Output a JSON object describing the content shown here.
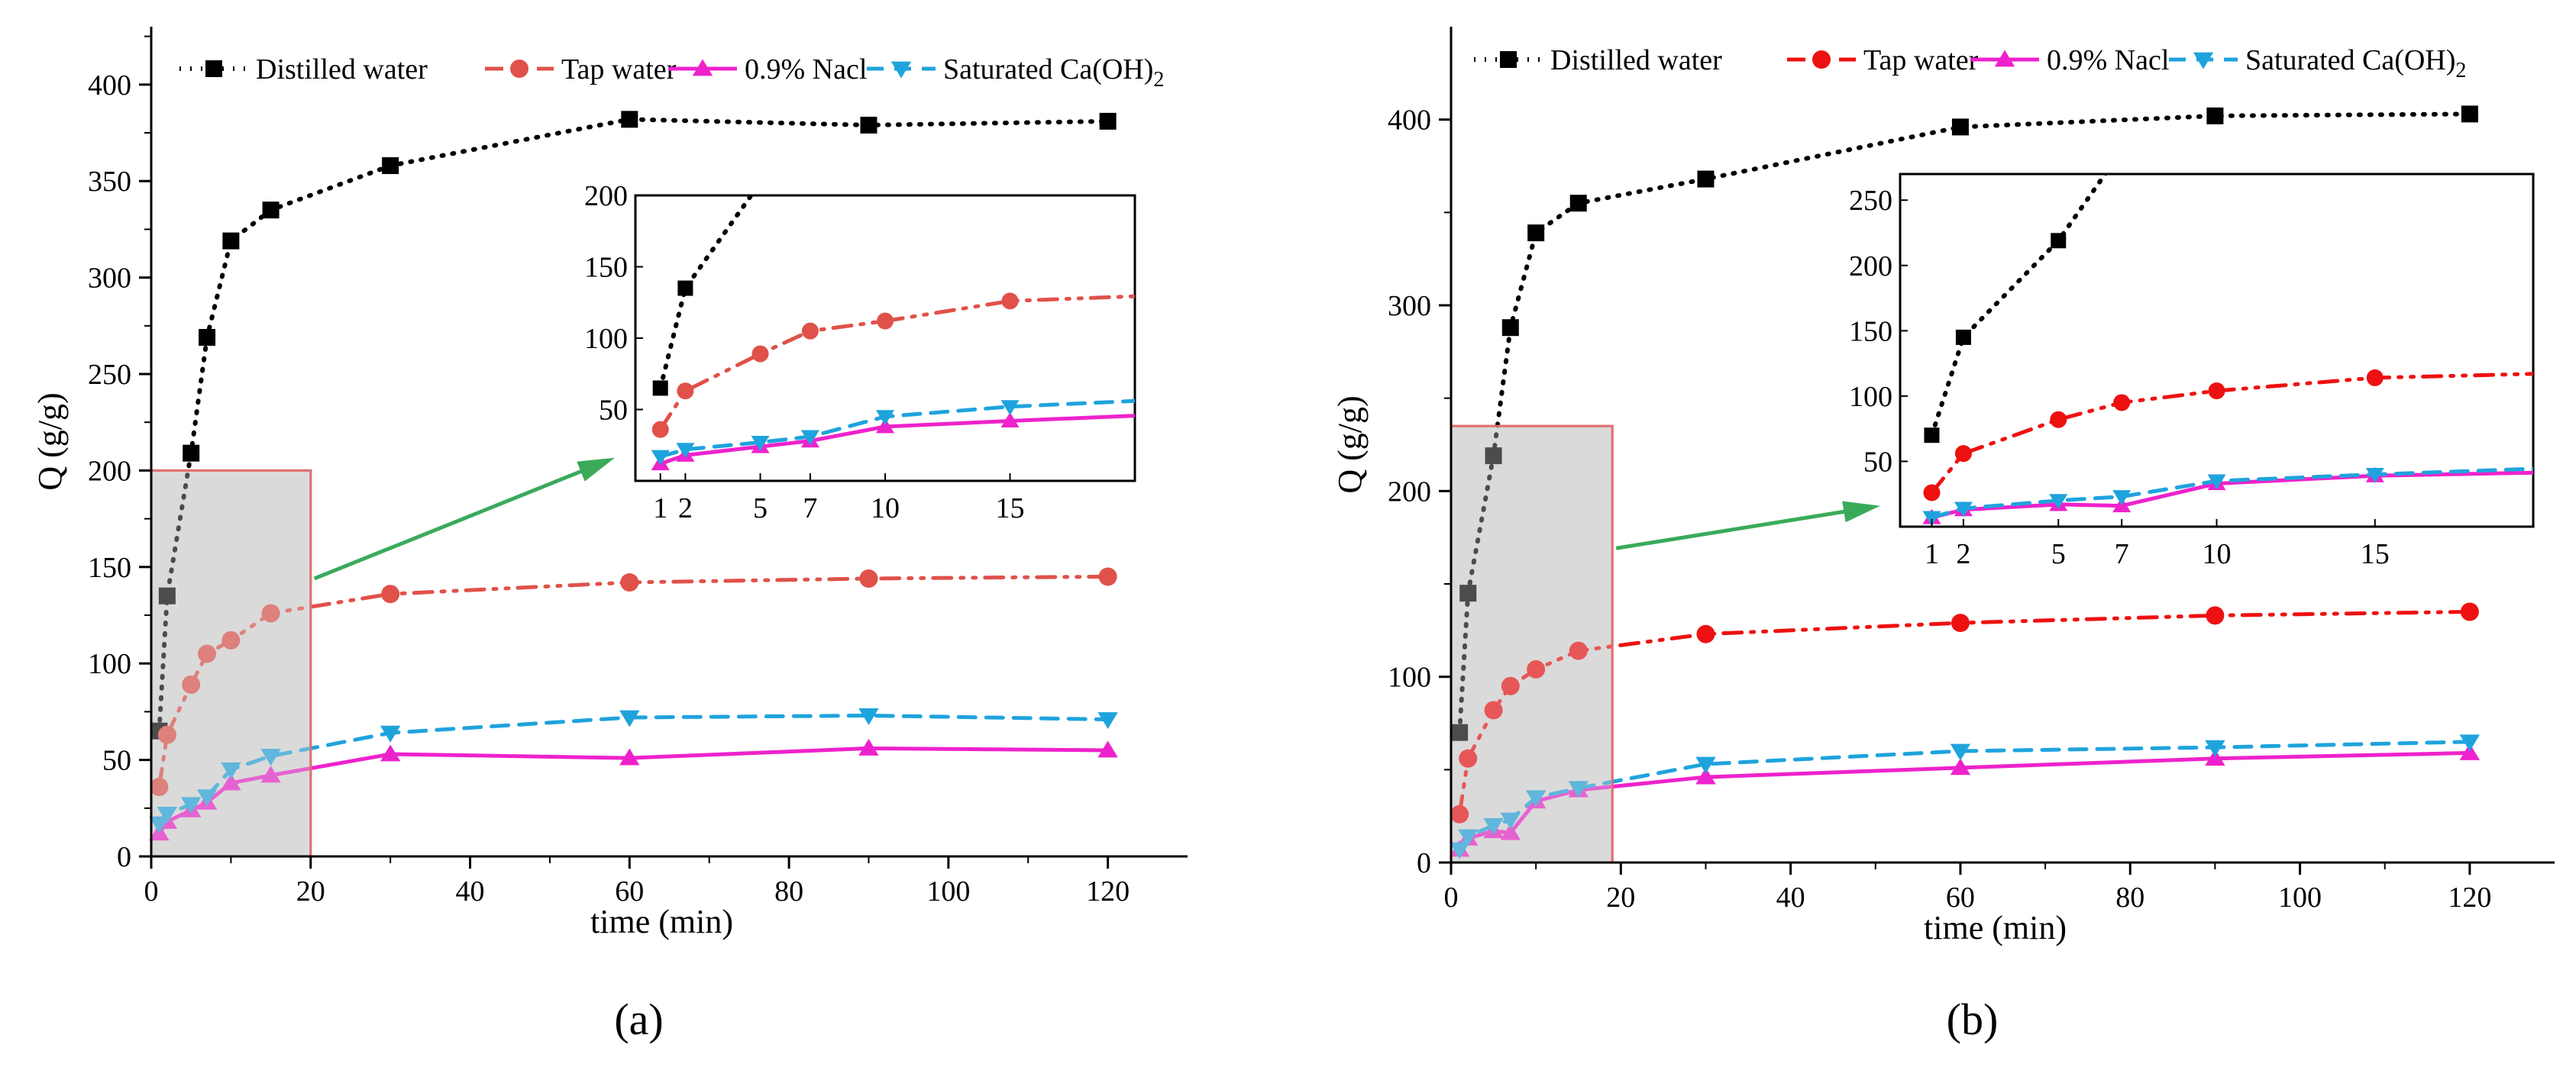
{
  "figure": {
    "colors": {
      "distilled": "#000000",
      "tap_a": "#e0514a",
      "tap_b": "#ee1111",
      "nacl": "#ee22cc",
      "caoh": "#1fa3dd",
      "zoom_box_fill": "#dadada",
      "zoom_box_stroke": "#e07070",
      "arrow": "#3aaa5a"
    }
  },
  "chart_data": [
    {
      "type": "line",
      "panel_label": "(a)",
      "xlabel": "time (min)",
      "ylabel": "Q (g/g)",
      "xlim": [
        0,
        130
      ],
      "ylim": [
        0,
        430
      ],
      "xticks": [
        0,
        20,
        40,
        60,
        80,
        100,
        120
      ],
      "yticks": [
        0,
        50,
        100,
        150,
        200,
        250,
        300,
        350,
        400
      ],
      "legend": {
        "position": "top",
        "entries": [
          "Distilled water",
          "Tap water",
          "0.9% Nacl",
          "Saturated Ca(OH)"
        ],
        "subscript_last": "2"
      },
      "series": [
        {
          "name": "Distilled water",
          "marker": "square",
          "line": "dotted",
          "x": [
            1,
            2,
            5,
            7,
            10,
            15,
            30,
            60,
            90,
            120
          ],
          "values": [
            65,
            135,
            209,
            269,
            319,
            335,
            358,
            382,
            379,
            381
          ]
        },
        {
          "name": "Tap water",
          "marker": "circle",
          "line": "dashdotdot",
          "x": [
            1,
            2,
            5,
            7,
            10,
            15,
            30,
            60,
            90,
            120
          ],
          "values": [
            36,
            63,
            89,
            105,
            112,
            126,
            136,
            142,
            144,
            145
          ]
        },
        {
          "name": "0.9% Nacl",
          "marker": "triangle-up",
          "line": "solid",
          "x": [
            1,
            2,
            5,
            7,
            10,
            15,
            30,
            60,
            90,
            120
          ],
          "values": [
            12,
            18,
            24,
            28,
            38,
            42,
            53,
            51,
            56,
            55
          ]
        },
        {
          "name": "Saturated Ca(OH)2",
          "marker": "triangle-down",
          "line": "dashed",
          "x": [
            1,
            2,
            5,
            7,
            10,
            15,
            30,
            60,
            90,
            120
          ],
          "values": [
            17,
            22,
            27,
            31,
            45,
            52,
            64,
            72,
            73,
            71
          ]
        }
      ],
      "zoom_region": {
        "xlim": [
          0,
          20
        ],
        "ylim": [
          0,
          200
        ]
      },
      "inset": {
        "xlim": [
          0,
          20
        ],
        "ylim": [
          0,
          200
        ],
        "xticks": [
          1,
          2,
          5,
          7,
          10,
          15
        ],
        "yticks": [
          50,
          100,
          150,
          200
        ]
      }
    },
    {
      "type": "line",
      "panel_label": "(b)",
      "xlabel": "time (min)",
      "ylabel": "Q (g/g)",
      "xlim": [
        0,
        130
      ],
      "ylim": [
        0,
        450
      ],
      "xticks": [
        0,
        20,
        40,
        60,
        80,
        100,
        120
      ],
      "yticks": [
        0,
        100,
        200,
        300,
        400
      ],
      "legend": {
        "position": "top",
        "entries": [
          "Distilled water",
          "Tap water",
          "0.9% Nacl",
          "Saturated Ca(OH)"
        ],
        "subscript_last": "2"
      },
      "series": [
        {
          "name": "Distilled water",
          "marker": "square",
          "line": "dotted",
          "x": [
            1,
            2,
            5,
            7,
            10,
            15,
            30,
            60,
            90,
            120
          ],
          "values": [
            70,
            145,
            219,
            288,
            339,
            355,
            368,
            396,
            402,
            403
          ]
        },
        {
          "name": "Tap water",
          "marker": "circle",
          "line": "dashdotdot",
          "x": [
            1,
            2,
            5,
            7,
            10,
            15,
            30,
            60,
            90,
            120
          ],
          "values": [
            26,
            56,
            82,
            95,
            104,
            114,
            123,
            129,
            133,
            135
          ]
        },
        {
          "name": "0.9% Nacl",
          "marker": "triangle-up",
          "line": "solid",
          "x": [
            1,
            2,
            5,
            7,
            10,
            15,
            30,
            60,
            90,
            120
          ],
          "values": [
            7,
            13,
            17,
            16,
            33,
            39,
            46,
            51,
            56,
            59
          ]
        },
        {
          "name": "Saturated Ca(OH)2",
          "marker": "triangle-down",
          "line": "dashed",
          "x": [
            1,
            2,
            5,
            7,
            10,
            15,
            30,
            60,
            90,
            120
          ],
          "values": [
            7,
            14,
            20,
            23,
            35,
            40,
            53,
            60,
            62,
            65
          ]
        }
      ],
      "zoom_region": {
        "xlim": [
          0,
          19
        ],
        "ylim": [
          0,
          235
        ]
      },
      "inset": {
        "xlim": [
          0,
          20
        ],
        "ylim": [
          0,
          270
        ],
        "xticks": [
          1,
          2,
          5,
          7,
          10,
          15
        ],
        "yticks": [
          50,
          100,
          150,
          200,
          250
        ]
      }
    }
  ]
}
